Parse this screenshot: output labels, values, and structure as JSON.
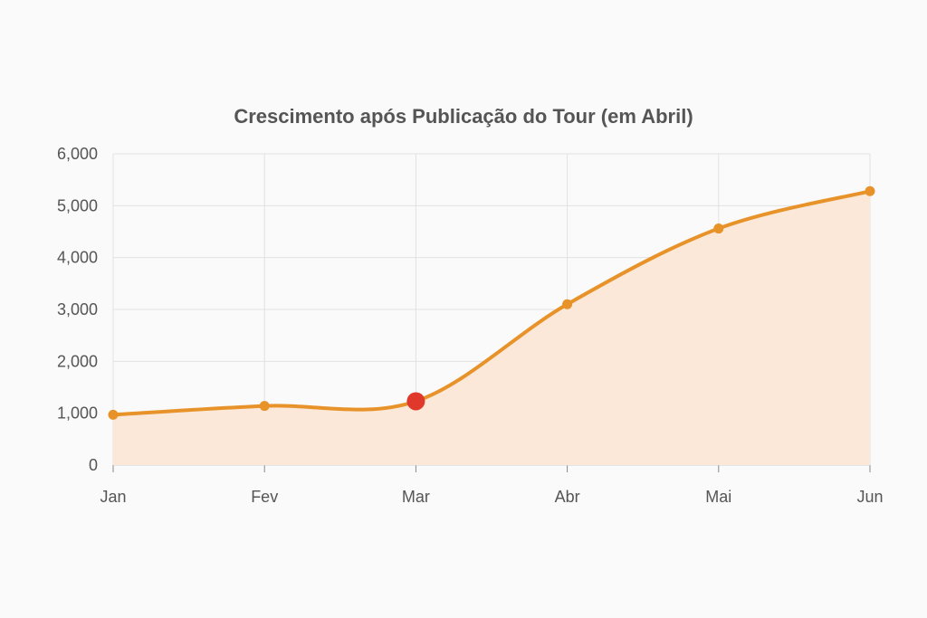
{
  "chart_data": {
    "type": "area",
    "title": "Crescimento após Publicação do Tour (em Abril)",
    "xlabel": "",
    "ylabel": "",
    "categories": [
      "Jan",
      "Fev",
      "Mar",
      "Abr",
      "Mai",
      "Jun"
    ],
    "series": [
      {
        "values": [
          970,
          1140,
          1230,
          3100,
          4560,
          5280
        ]
      }
    ],
    "highlight": {
      "category": "Mar",
      "value": 1230
    },
    "ylim": [
      0,
      6000
    ],
    "yticks": [
      0,
      1000,
      2000,
      3000,
      4000,
      5000,
      6000
    ],
    "ytick_labels": [
      "0",
      "1,000",
      "2,000",
      "3,000",
      "4,000",
      "5,000",
      "6,000"
    ],
    "grid": true,
    "colors": {
      "line": "#e8922a",
      "fill": "#fbe8d8",
      "highlight": "#e0392b",
      "grid": "#e2e2e2"
    }
  }
}
